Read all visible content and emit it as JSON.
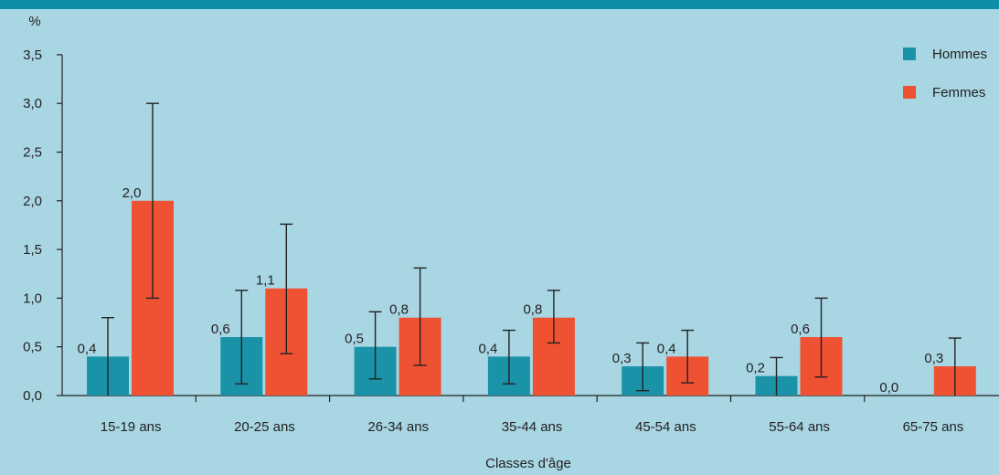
{
  "header": {
    "title": ""
  },
  "chart_data": {
    "type": "bar",
    "title": "",
    "ylabel": "%",
    "xlabel": "Classes d'âge",
    "ylim": [
      0,
      3.5
    ],
    "yticks": [
      "0,0",
      "0,5",
      "1,0",
      "1,5",
      "2,0",
      "2,5",
      "3,0",
      "3,5"
    ],
    "ytick_values": [
      0,
      0.5,
      1.0,
      1.5,
      2.0,
      2.5,
      3.0,
      3.5
    ],
    "categories": [
      "15-19 ans",
      "20-25 ans",
      "26-34 ans",
      "35-44 ans",
      "45-54 ans",
      "55-64 ans",
      "65-75 ans"
    ],
    "series": [
      {
        "name": "Hommes",
        "color": "#1a93a8",
        "values": [
          0.4,
          0.6,
          0.5,
          0.4,
          0.3,
          0.2,
          0.0
        ],
        "labels": [
          "0,4",
          "0,6",
          "0,5",
          "0,4",
          "0,3",
          "0,2",
          "0,0"
        ],
        "err_low": [
          0.0,
          0.12,
          0.17,
          0.12,
          0.05,
          0.0,
          null
        ],
        "err_high": [
          0.8,
          1.08,
          0.86,
          0.67,
          0.54,
          0.39,
          null
        ]
      },
      {
        "name": "Femmes",
        "color": "#ef5232",
        "values": [
          2.0,
          1.1,
          0.8,
          0.8,
          0.4,
          0.6,
          0.3
        ],
        "labels": [
          "2,0",
          "1,1",
          "0,8",
          "0,8",
          "0,4",
          "0,6",
          "0,3"
        ],
        "err_low": [
          1.0,
          0.43,
          0.31,
          0.54,
          0.13,
          0.19,
          0.0
        ],
        "err_high": [
          3.0,
          1.76,
          1.31,
          1.08,
          0.67,
          1.0,
          0.59
        ]
      }
    ],
    "legend": "top-right",
    "grid": false
  }
}
